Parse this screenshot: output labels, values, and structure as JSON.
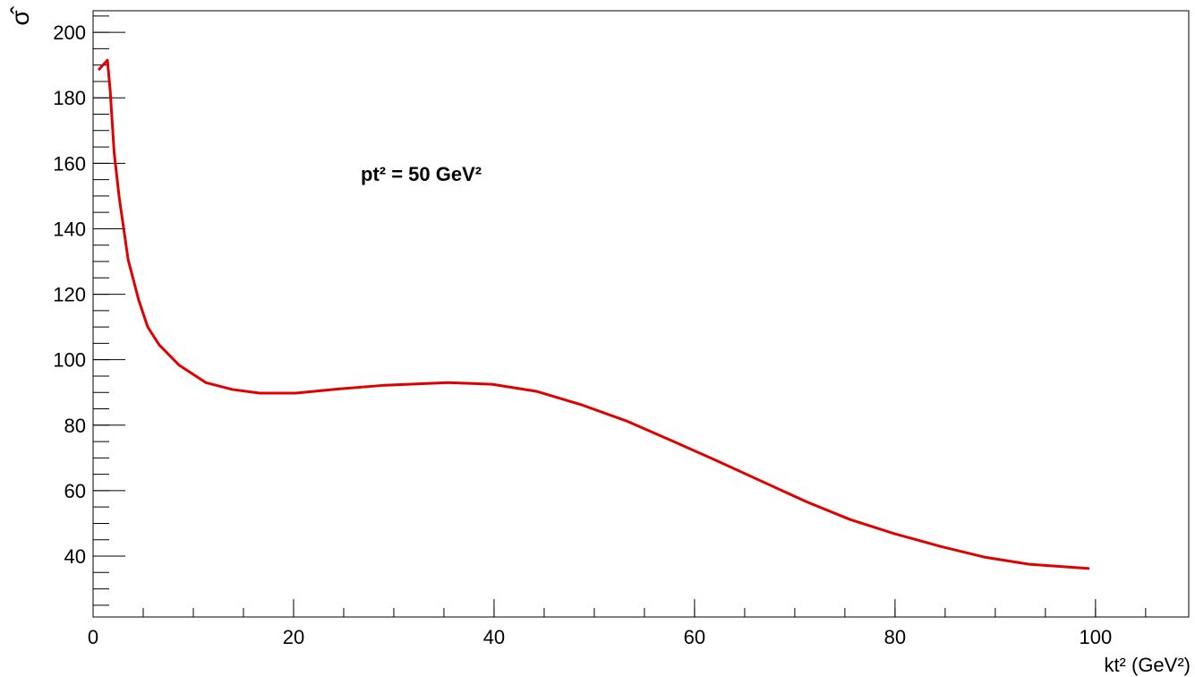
{
  "chart_data": {
    "type": "line",
    "y_label": "σ̂",
    "x_label": "kt² (GeV²)",
    "annotation": "pt² = 50 GeV²",
    "series": [
      {
        "color": "#e00000",
        "x": [
          0.54,
          1.43,
          1.7,
          2.1,
          2.6,
          3.5,
          4.55,
          5.45,
          6.6,
          8.6,
          11.25,
          13.9,
          16.6,
          20.2,
          24.6,
          29.1,
          35.4,
          39.8,
          44.3,
          48.75,
          53.2,
          57.7,
          62.1,
          66.6,
          71.1,
          75.5,
          80,
          84.5,
          88.9,
          93.4,
          99.4
        ],
        "values": [
          188.5,
          191.5,
          182.5,
          163.3,
          149.7,
          130.5,
          118.2,
          110,
          104.5,
          98.3,
          93,
          90.9,
          89.8,
          89.8,
          91.1,
          92.2,
          93,
          92.5,
          90.3,
          86.2,
          81.3,
          75.3,
          69.3,
          63,
          56.7,
          51.2,
          46.8,
          43,
          39.7,
          37.5,
          36.2
        ]
      }
    ],
    "xlim": [
      0,
      109.3
    ],
    "xticks": [
      0,
      20,
      40,
      60,
      80,
      100
    ],
    "ylim": [
      21.4,
      206.6
    ],
    "yticks": [
      40,
      60,
      80,
      100,
      120,
      140,
      160,
      180,
      200
    ]
  }
}
